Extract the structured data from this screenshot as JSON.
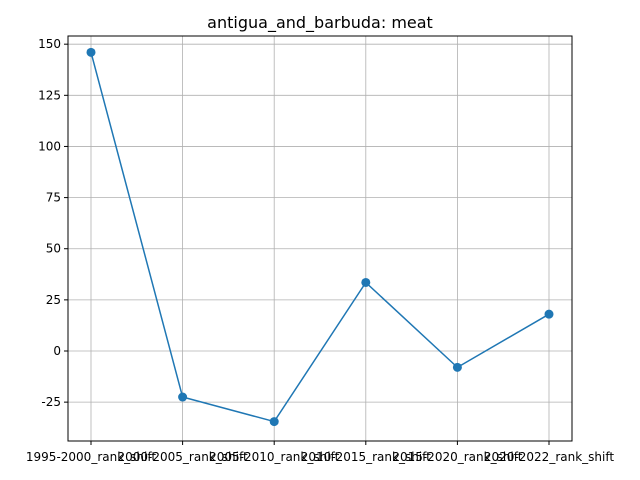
{
  "chart_data": {
    "type": "line",
    "title": "antigua_and_barbuda: meat",
    "xlabel": "",
    "ylabel": "",
    "categories": [
      "1995-2000_rank_shift",
      "2000-2005_rank_shift",
      "2005-2010_rank_shift",
      "2010-2015_rank_shift",
      "2015-2020_rank_shift",
      "2020-2022_rank_shift"
    ],
    "values": [
      146,
      -22.5,
      -34.5,
      33.5,
      -8,
      18
    ],
    "yticks": [
      -25,
      0,
      25,
      50,
      75,
      100,
      125,
      150
    ],
    "ylim": [
      -44,
      154
    ],
    "grid": true,
    "color": "#1f77b4"
  }
}
